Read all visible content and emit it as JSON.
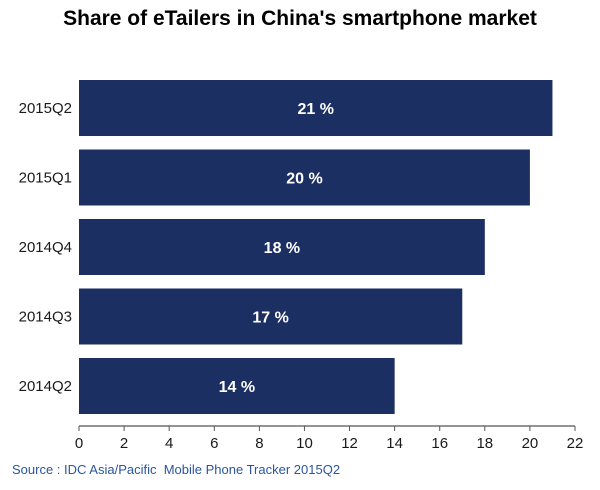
{
  "chart_data": {
    "type": "bar",
    "orientation": "horizontal",
    "title": "Share of eTailers in China's smartphone market",
    "categories": [
      "2015Q2",
      "2015Q1",
      "2014Q4",
      "2014Q3",
      "2014Q2"
    ],
    "values": [
      21,
      20,
      18,
      17,
      14
    ],
    "data_labels": [
      "21 %",
      "20 %",
      "18 %",
      "17 %",
      "14 %"
    ],
    "xlim": [
      0,
      22
    ],
    "xticks": [
      0,
      2,
      4,
      6,
      8,
      10,
      12,
      14,
      16,
      18,
      20,
      22
    ],
    "xlabel": "",
    "ylabel": "",
    "grid": false,
    "legend": "none",
    "colors": {
      "bar": "#1b2f63",
      "axis": "#555555",
      "source_text": "#2a55a0"
    }
  },
  "source": "Source : IDC Asia/Pacific  Mobile Phone Tracker 2015Q2"
}
